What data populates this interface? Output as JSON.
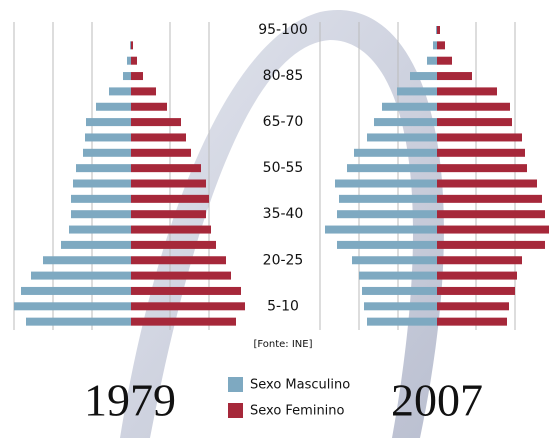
{
  "chart_data": {
    "type": "pyramid",
    "categories": [
      "95-100",
      null,
      null,
      "80-85",
      null,
      null,
      "65-70",
      null,
      null,
      "50-55",
      null,
      null,
      "35-40",
      null,
      null,
      "20-25",
      null,
      null,
      "5-10",
      null
    ],
    "series": [
      {
        "name": "Sexo Masculino",
        "color": "#7ea9c1"
      },
      {
        "name": "Sexo Feminino",
        "color": "#a6283a"
      }
    ],
    "annotation": "[Fonte: INE]",
    "panels": [
      {
        "title": "1979",
        "values": [
          [
            0,
            1,
            4,
            8,
            22,
            35,
            45,
            46,
            48,
            55,
            58,
            60,
            60,
            62,
            70,
            88,
            100,
            110,
            117,
            105
          ],
          [
            0,
            2,
            6,
            12,
            25,
            36,
            50,
            55,
            60,
            70,
            75,
            78,
            75,
            80,
            85,
            95,
            100,
            110,
            114,
            105
          ]
        ]
      },
      {
        "title": "2007",
        "values": [
          [
            1,
            4,
            10,
            27,
            40,
            55,
            63,
            70,
            83,
            90,
            102,
            98,
            100,
            112,
            100,
            85,
            78,
            75,
            73,
            70
          ],
          [
            3,
            8,
            15,
            35,
            60,
            73,
            75,
            85,
            88,
            90,
            100,
            105,
            108,
            112,
            108,
            85,
            80,
            78,
            72,
            70
          ]
        ]
      }
    ]
  }
}
